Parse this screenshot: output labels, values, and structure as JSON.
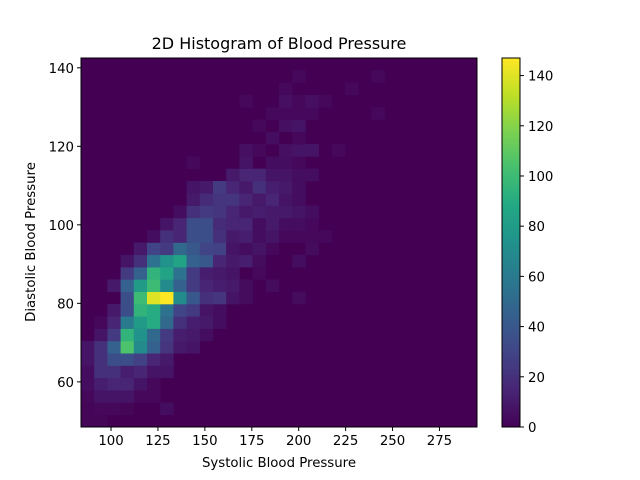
{
  "chart_data": {
    "type": "heatmap",
    "title": "2D Histogram of Blood Pressure",
    "xlabel": "Systolic Blood Pressure",
    "ylabel": "Diastolic Blood Pressure",
    "xlim": [
      84,
      295
    ],
    "ylim": [
      48.5,
      142.5
    ],
    "bins": [
      30,
      30
    ],
    "xticks": [
      100,
      125,
      150,
      175,
      200,
      225,
      250,
      275
    ],
    "yticks": [
      60,
      80,
      100,
      120,
      140
    ],
    "colormap": "viridis",
    "colorbar": {
      "min": 0,
      "max": 147,
      "ticks": [
        0,
        20,
        40,
        60,
        80,
        100,
        120,
        140
      ]
    },
    "cells_format": "[x_bin, y_bin, count] (bins indexed from lower-left; unlisted bins are 0)",
    "cells": [
      [
        0,
        0,
        2
      ],
      [
        1,
        0,
        2
      ],
      [
        0,
        1,
        2
      ],
      [
        1,
        1,
        3
      ],
      [
        2,
        1,
        3
      ],
      [
        3,
        1,
        2
      ],
      [
        6,
        1,
        5
      ],
      [
        0,
        2,
        3
      ],
      [
        1,
        2,
        8
      ],
      [
        2,
        2,
        8
      ],
      [
        3,
        2,
        8
      ],
      [
        4,
        2,
        3
      ],
      [
        5,
        2,
        3
      ],
      [
        0,
        3,
        5
      ],
      [
        1,
        3,
        12
      ],
      [
        2,
        3,
        15
      ],
      [
        3,
        3,
        15
      ],
      [
        4,
        3,
        8
      ],
      [
        5,
        3,
        3
      ],
      [
        0,
        4,
        5
      ],
      [
        1,
        4,
        20
      ],
      [
        2,
        4,
        20
      ],
      [
        3,
        4,
        12
      ],
      [
        4,
        4,
        15
      ],
      [
        5,
        4,
        8
      ],
      [
        6,
        4,
        8
      ],
      [
        0,
        5,
        8
      ],
      [
        1,
        5,
        20
      ],
      [
        2,
        5,
        35
      ],
      [
        3,
        5,
        35
      ],
      [
        4,
        5,
        28
      ],
      [
        5,
        5,
        15
      ],
      [
        6,
        5,
        10
      ],
      [
        0,
        6,
        8
      ],
      [
        1,
        6,
        20
      ],
      [
        2,
        6,
        45
      ],
      [
        3,
        6,
        105
      ],
      [
        4,
        6,
        70
      ],
      [
        5,
        6,
        45
      ],
      [
        6,
        6,
        22
      ],
      [
        7,
        6,
        10
      ],
      [
        8,
        6,
        8
      ],
      [
        1,
        7,
        8
      ],
      [
        2,
        7,
        25
      ],
      [
        3,
        7,
        95
      ],
      [
        4,
        7,
        75
      ],
      [
        5,
        7,
        50
      ],
      [
        6,
        7,
        25
      ],
      [
        7,
        7,
        12
      ],
      [
        8,
        7,
        10
      ],
      [
        9,
        7,
        5
      ],
      [
        1,
        8,
        3
      ],
      [
        2,
        8,
        15
      ],
      [
        3,
        8,
        60
      ],
      [
        4,
        8,
        80
      ],
      [
        5,
        8,
        90
      ],
      [
        6,
        8,
        50
      ],
      [
        7,
        8,
        20
      ],
      [
        8,
        8,
        12
      ],
      [
        9,
        8,
        10
      ],
      [
        10,
        8,
        5
      ],
      [
        2,
        9,
        10
      ],
      [
        3,
        9,
        35
      ],
      [
        4,
        9,
        95
      ],
      [
        5,
        9,
        90
      ],
      [
        6,
        9,
        55
      ],
      [
        7,
        9,
        30
      ],
      [
        8,
        9,
        25
      ],
      [
        9,
        9,
        8
      ],
      [
        10,
        9,
        5
      ],
      [
        3,
        10,
        35
      ],
      [
        4,
        10,
        100
      ],
      [
        5,
        10,
        140
      ],
      [
        6,
        10,
        147
      ],
      [
        7,
        10,
        70
      ],
      [
        8,
        10,
        40
      ],
      [
        9,
        10,
        20
      ],
      [
        10,
        10,
        22
      ],
      [
        11,
        10,
        8
      ],
      [
        12,
        10,
        4
      ],
      [
        16,
        10,
        4
      ],
      [
        2,
        11,
        10
      ],
      [
        3,
        11,
        45
      ],
      [
        4,
        11,
        80
      ],
      [
        5,
        11,
        100
      ],
      [
        6,
        11,
        70
      ],
      [
        7,
        11,
        45
      ],
      [
        8,
        11,
        25
      ],
      [
        9,
        11,
        15
      ],
      [
        10,
        11,
        12
      ],
      [
        11,
        11,
        10
      ],
      [
        12,
        11,
        4
      ],
      [
        14,
        11,
        4
      ],
      [
        3,
        12,
        25
      ],
      [
        4,
        12,
        45
      ],
      [
        5,
        12,
        95
      ],
      [
        6,
        12,
        85
      ],
      [
        7,
        12,
        55
      ],
      [
        8,
        12,
        25
      ],
      [
        9,
        12,
        12
      ],
      [
        10,
        12,
        10
      ],
      [
        11,
        12,
        8
      ],
      [
        13,
        12,
        3
      ],
      [
        3,
        13,
        8
      ],
      [
        4,
        13,
        20
      ],
      [
        5,
        13,
        55
      ],
      [
        6,
        13,
        75
      ],
      [
        7,
        13,
        85
      ],
      [
        8,
        13,
        45
      ],
      [
        9,
        13,
        40
      ],
      [
        10,
        13,
        15
      ],
      [
        11,
        13,
        10
      ],
      [
        12,
        13,
        12
      ],
      [
        13,
        13,
        4
      ],
      [
        16,
        13,
        5
      ],
      [
        4,
        14,
        10
      ],
      [
        5,
        14,
        30
      ],
      [
        6,
        14,
        25
      ],
      [
        7,
        14,
        50
      ],
      [
        8,
        14,
        40
      ],
      [
        9,
        14,
        30
      ],
      [
        10,
        14,
        28
      ],
      [
        11,
        14,
        8
      ],
      [
        12,
        14,
        5
      ],
      [
        13,
        14,
        8
      ],
      [
        14,
        14,
        3
      ],
      [
        17,
        14,
        4
      ],
      [
        5,
        15,
        5
      ],
      [
        6,
        15,
        20
      ],
      [
        7,
        15,
        15
      ],
      [
        8,
        15,
        35
      ],
      [
        9,
        15,
        35
      ],
      [
        10,
        15,
        20
      ],
      [
        11,
        15,
        10
      ],
      [
        12,
        15,
        12
      ],
      [
        13,
        15,
        5
      ],
      [
        14,
        15,
        8
      ],
      [
        15,
        15,
        3
      ],
      [
        16,
        15,
        3
      ],
      [
        17,
        15,
        3
      ],
      [
        18,
        15,
        3
      ],
      [
        6,
        16,
        8
      ],
      [
        7,
        16,
        15
      ],
      [
        8,
        16,
        35
      ],
      [
        9,
        16,
        35
      ],
      [
        10,
        16,
        18
      ],
      [
        11,
        16,
        15
      ],
      [
        12,
        16,
        15
      ],
      [
        13,
        16,
        5
      ],
      [
        14,
        16,
        10
      ],
      [
        15,
        16,
        5
      ],
      [
        16,
        16,
        5
      ],
      [
        17,
        16,
        3
      ],
      [
        7,
        17,
        5
      ],
      [
        8,
        17,
        20
      ],
      [
        9,
        17,
        25
      ],
      [
        10,
        17,
        22
      ],
      [
        11,
        17,
        15
      ],
      [
        12,
        17,
        10
      ],
      [
        13,
        17,
        12
      ],
      [
        14,
        17,
        10
      ],
      [
        15,
        17,
        10
      ],
      [
        16,
        17,
        8
      ],
      [
        17,
        17,
        5
      ],
      [
        8,
        18,
        10
      ],
      [
        9,
        18,
        18
      ],
      [
        10,
        18,
        22
      ],
      [
        11,
        18,
        22
      ],
      [
        12,
        18,
        15
      ],
      [
        13,
        18,
        10
      ],
      [
        14,
        18,
        15
      ],
      [
        15,
        18,
        8
      ],
      [
        16,
        18,
        5
      ],
      [
        8,
        19,
        8
      ],
      [
        9,
        19,
        10
      ],
      [
        10,
        19,
        25
      ],
      [
        11,
        19,
        15
      ],
      [
        12,
        19,
        10
      ],
      [
        13,
        19,
        20
      ],
      [
        14,
        19,
        12
      ],
      [
        15,
        19,
        10
      ],
      [
        16,
        19,
        5
      ],
      [
        11,
        20,
        10
      ],
      [
        12,
        20,
        15
      ],
      [
        13,
        20,
        15
      ],
      [
        14,
        20,
        8
      ],
      [
        15,
        20,
        8
      ],
      [
        16,
        20,
        5
      ],
      [
        17,
        20,
        5
      ],
      [
        8,
        21,
        3
      ],
      [
        12,
        21,
        8
      ],
      [
        14,
        21,
        5
      ],
      [
        15,
        21,
        5
      ],
      [
        16,
        21,
        3
      ],
      [
        12,
        22,
        6
      ],
      [
        13,
        22,
        3
      ],
      [
        15,
        22,
        6
      ],
      [
        16,
        22,
        8
      ],
      [
        17,
        22,
        8
      ],
      [
        19,
        22,
        3
      ],
      [
        14,
        23,
        5
      ],
      [
        16,
        23,
        3
      ],
      [
        13,
        24,
        3
      ],
      [
        15,
        24,
        6
      ],
      [
        16,
        24,
        8
      ],
      [
        14,
        25,
        3
      ],
      [
        15,
        25,
        3
      ],
      [
        16,
        25,
        3
      ],
      [
        17,
        25,
        3
      ],
      [
        22,
        25,
        3
      ],
      [
        12,
        26,
        3
      ],
      [
        15,
        26,
        6
      ],
      [
        16,
        26,
        3
      ],
      [
        17,
        26,
        6
      ],
      [
        18,
        26,
        3
      ],
      [
        15,
        27,
        3
      ],
      [
        20,
        27,
        3
      ],
      [
        16,
        28,
        3
      ],
      [
        22,
        28,
        3
      ]
    ]
  }
}
